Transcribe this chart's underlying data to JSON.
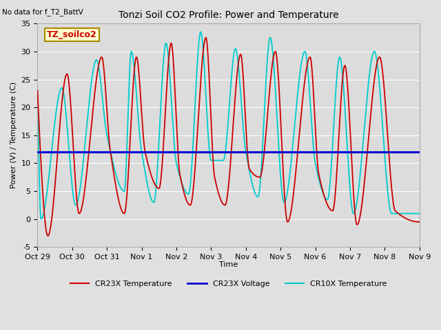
{
  "title": "Tonzi Soil CO2 Profile: Power and Temperature",
  "no_data_text": "No data for f_T2_BattV",
  "ylabel": "Power (V) / Temperature (C)",
  "xlabel": "Time",
  "ylim": [
    -5,
    35
  ],
  "yticks": [
    -5,
    0,
    5,
    10,
    15,
    20,
    25,
    30,
    35
  ],
  "xtick_labels": [
    "Oct 29",
    "Oct 30",
    "Oct 31",
    "Nov 1",
    "Nov 2",
    "Nov 3",
    "Nov 4",
    "Nov 5",
    "Nov 6",
    "Nov 7",
    "Nov 8",
    "Nov 9"
  ],
  "voltage_value": 12.0,
  "figure_bg": "#e0e0e0",
  "plot_bg": "#dcdcdc",
  "grid_color": "#ffffff",
  "cr23x_color": "#cc0000",
  "cr10x_color": "#00cccc",
  "voltage_color": "#0000cc",
  "legend_label_box": "TZ_soilco2",
  "legend_entries": [
    "CR23X Temperature",
    "CR23X Voltage",
    "CR10X Temperature"
  ],
  "cr23x_peaks": [
    0.85,
    1.85,
    2.85,
    3.85,
    4.85,
    5.85,
    6.85,
    7.85,
    8.85,
    9.85
  ],
  "cr23x_peak_vals": [
    26.0,
    29.0,
    29.0,
    31.5,
    32.5,
    29.5,
    30.0,
    29.0,
    27.5,
    29.0
  ],
  "cr23x_trough_vals": [
    -3.0,
    1.0,
    5.5,
    2.5,
    2.5,
    7.5,
    2.5,
    -0.5,
    1.5,
    -0.5
  ],
  "cr10x_peaks": [
    0.7,
    1.7,
    2.7,
    3.7,
    4.7,
    5.7,
    6.7,
    7.7,
    8.7,
    9.7
  ],
  "cr10x_peak_vals": [
    23.5,
    28.5,
    30.0,
    31.5,
    33.5,
    30.5,
    32.5,
    30.0,
    29.0,
    30.0
  ],
  "cr10x_trough_vals": [
    0.0,
    2.5,
    5.0,
    3.0,
    4.5,
    10.5,
    4.0,
    3.0,
    3.5,
    1.0
  ]
}
